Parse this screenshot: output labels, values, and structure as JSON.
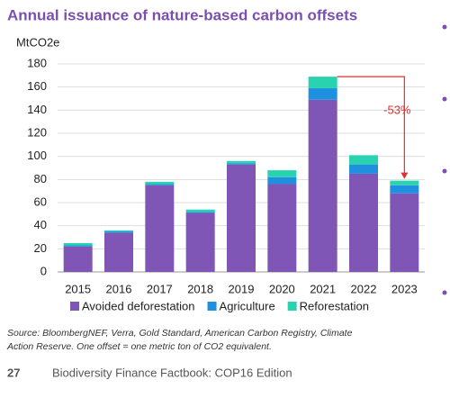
{
  "chart_data": {
    "type": "stacked_bar",
    "title": "Annual issuance of nature-based carbon offsets",
    "y_axis_label": "MtCO2e",
    "categories": [
      "2015",
      "2016",
      "2017",
      "2018",
      "2019",
      "2020",
      "2021",
      "2022",
      "2023"
    ],
    "series": [
      {
        "name": "Avoided deforestation",
        "color": "#7f56b5",
        "values": [
          22,
          34,
          75,
          51,
          93,
          76,
          149,
          85,
          68
        ]
      },
      {
        "name": "Agriculture",
        "color": "#1f8fe0",
        "values": [
          1,
          1,
          1,
          1,
          1,
          6,
          10,
          8,
          7
        ]
      },
      {
        "name": "Reforestation",
        "color": "#2ad3b0",
        "values": [
          2,
          1,
          2,
          2,
          2,
          6,
          10,
          8,
          4
        ]
      }
    ],
    "ylim": [
      0,
      180
    ],
    "yticks": [
      0,
      20,
      40,
      60,
      80,
      100,
      120,
      140,
      160,
      180
    ],
    "grid": true,
    "annotation": "-53%",
    "source": [
      "Source: BloombergNEF, Verra, Gold Standard, American Carbon Registry, Climate",
      "Action Reserve. One offset = one metric ton of CO2 equivalent."
    ]
  },
  "footer": {
    "page": "27",
    "text": "Biodiversity Finance Factbook: COP16 Edition"
  }
}
